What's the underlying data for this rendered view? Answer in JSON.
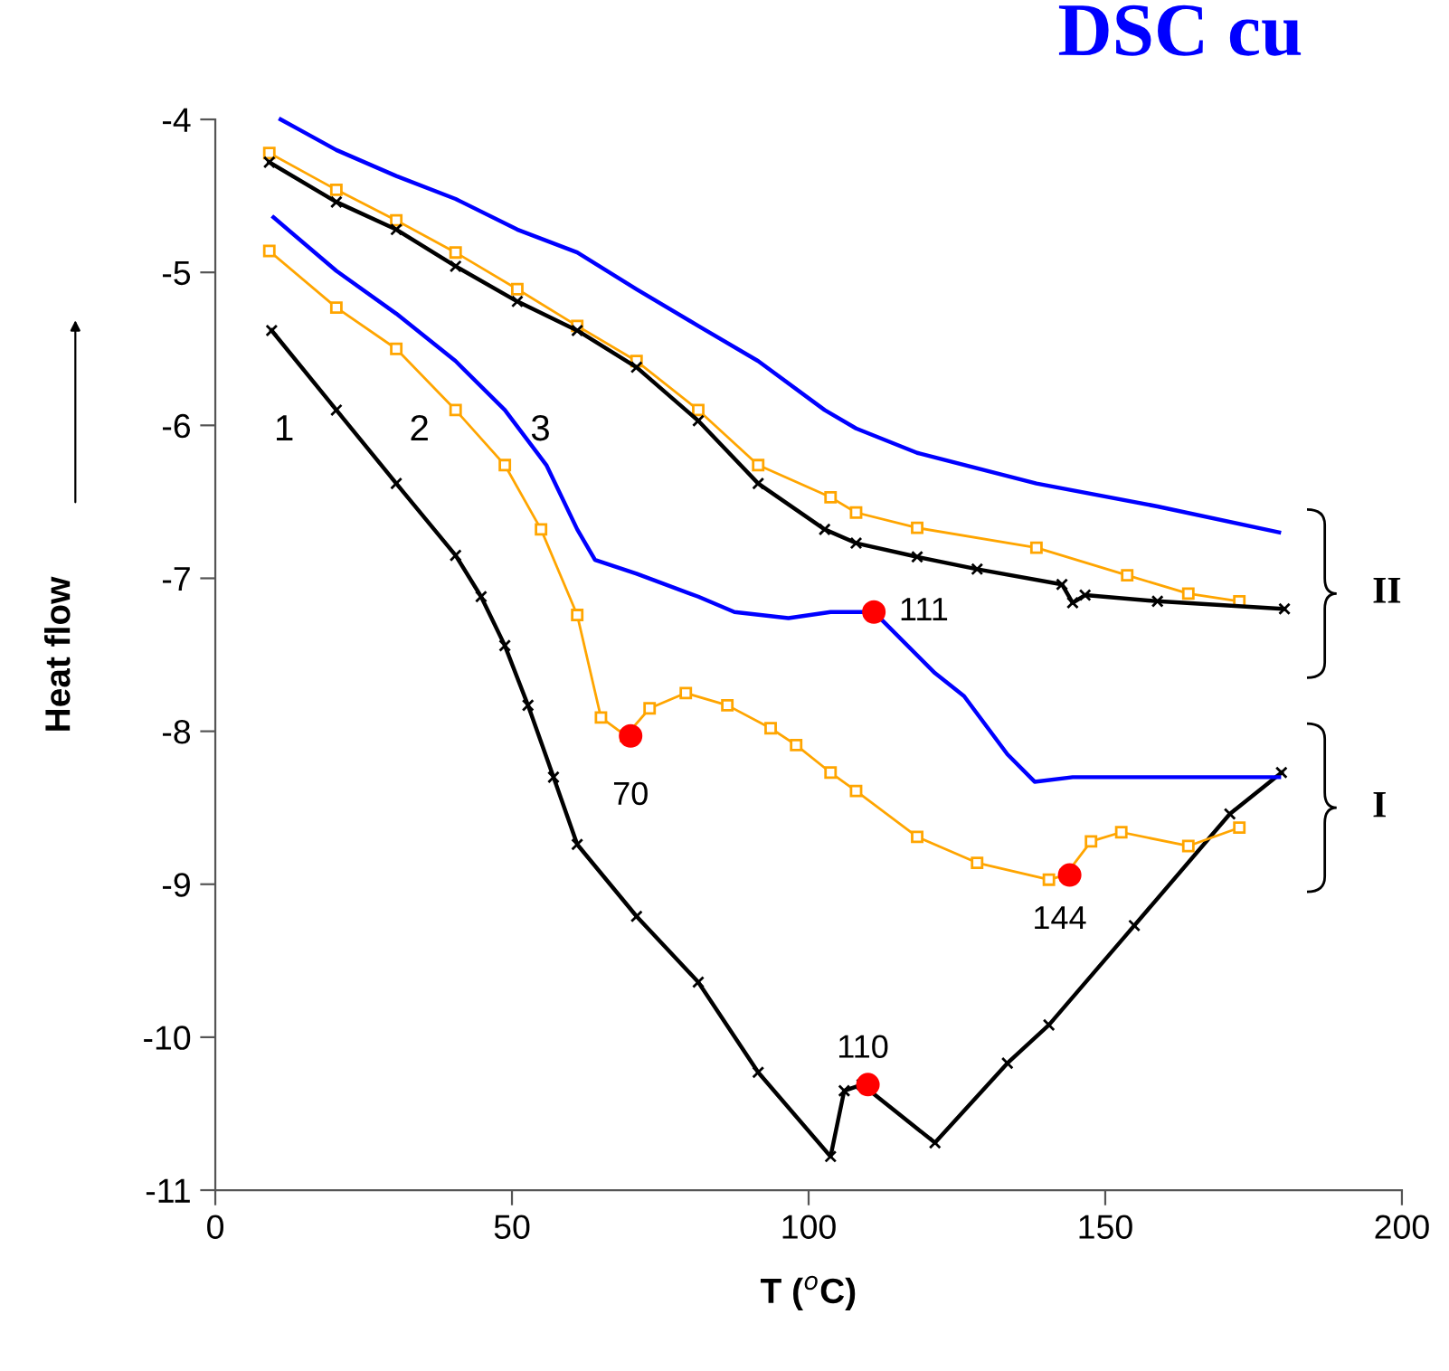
{
  "chart_data": {
    "type": "line",
    "title": "DSC cu",
    "xlabel": "T ($^{o}$C)",
    "ylabel": "Heat flow",
    "xlim": [
      0,
      200
    ],
    "xticks": [
      0,
      50,
      100,
      150,
      200
    ],
    "ylim": [
      -11,
      -4
    ],
    "yticks": [
      -11,
      -10,
      -9,
      -8,
      -7,
      -6,
      -5,
      -4
    ],
    "grid": false,
    "legend": false,
    "series": [
      {
        "color": "#000000",
        "marker": "cross",
        "x": [
          9.5,
          20.4,
          30.5,
          40.5,
          44.8,
          48.8,
          52.7,
          57,
          61,
          71,
          81.4,
          91.5,
          103.7,
          106,
          109,
          121.3,
          133.5,
          140.5,
          154.9,
          171,
          179.7
        ],
        "values": [
          -5.38,
          -5.9,
          -6.38,
          -6.85,
          -7.12,
          -7.44,
          -7.83,
          -8.3,
          -8.74,
          -9.21,
          -9.64,
          -10.23,
          -10.78,
          -10.35,
          -10.31,
          -10.69,
          -10.17,
          -9.92,
          -9.27,
          -8.54,
          -8.27
        ]
      },
      {
        "color": "#ffa500",
        "marker": "square",
        "x": [
          9.1,
          20.4,
          30.5,
          40.5,
          48.8,
          54.9,
          61,
          65,
          69.2,
          73.2,
          79.3,
          86.3,
          93.6,
          97.9,
          103.7,
          108,
          118.3,
          128.4,
          140.5,
          143.3,
          147.6,
          152.7,
          164,
          172.6
        ],
        "values": [
          -4.86,
          -5.23,
          -5.5,
          -5.9,
          -6.26,
          -6.68,
          -7.24,
          -7.91,
          -8.03,
          -7.85,
          -7.75,
          -7.83,
          -7.98,
          -8.09,
          -8.27,
          -8.39,
          -8.69,
          -8.86,
          -8.97,
          -8.94,
          -8.72,
          -8.66,
          -8.75,
          -8.63
        ]
      },
      {
        "color": "#0000ff",
        "marker": "none",
        "x": [
          9.8,
          20.4,
          30.5,
          40.5,
          48.8,
          55.8,
          61,
          64,
          71,
          81.4,
          87.5,
          96.6,
          103.7,
          111,
          121.3,
          126.2,
          133.5,
          138.1,
          144.5,
          179.3
        ],
        "values": [
          -4.64,
          -4.99,
          -5.27,
          -5.58,
          -5.9,
          -6.26,
          -6.68,
          -6.88,
          -6.97,
          -7.12,
          -7.22,
          -7.26,
          -7.22,
          -7.22,
          -7.62,
          -7.77,
          -8.15,
          -8.33,
          -8.3,
          -8.3
        ]
      },
      {
        "color": "#0000ff",
        "marker": "none",
        "x": [
          11,
          14.3,
          20.4,
          30.5,
          40.5,
          50.9,
          61,
          71,
          81.4,
          91.5,
          102.7,
          108,
          118.3,
          138.4,
          158.8,
          179.3
        ],
        "values": [
          -4.0,
          -4.07,
          -4.2,
          -4.37,
          -4.52,
          -4.72,
          -4.87,
          -5.11,
          -5.35,
          -5.58,
          -5.9,
          -6.02,
          -6.18,
          -6.38,
          -6.53,
          -6.7
        ]
      },
      {
        "color": "#ffa500",
        "marker": "square",
        "x": [
          9.1,
          20.4,
          30.5,
          40.5,
          50.9,
          61,
          71,
          81.4,
          91.5,
          103.7,
          108,
          118.3,
          138.4,
          153.7,
          164,
          172.6
        ],
        "values": [
          -4.22,
          -4.46,
          -4.66,
          -4.87,
          -5.11,
          -5.35,
          -5.58,
          -5.9,
          -6.26,
          -6.47,
          -6.57,
          -6.67,
          -6.8,
          -6.98,
          -7.1,
          -7.15
        ]
      },
      {
        "color": "#000000",
        "marker": "cross",
        "x": [
          9.1,
          20.4,
          30.5,
          40.5,
          50.9,
          61,
          71,
          81.4,
          91.5,
          102.7,
          108,
          118.3,
          128.4,
          142.7,
          144.5,
          146.6,
          158.8,
          180.2
        ],
        "values": [
          -4.28,
          -4.54,
          -4.72,
          -4.96,
          -5.19,
          -5.38,
          -5.62,
          -5.97,
          -6.38,
          -6.68,
          -6.77,
          -6.86,
          -6.94,
          -7.04,
          -7.16,
          -7.11,
          -7.15,
          -7.2
        ]
      },
      {
        "type": "scatter",
        "color": "#ff0000",
        "marker": "circle",
        "x": [
          70,
          111,
          144,
          110
        ],
        "values": [
          -8.03,
          -7.22,
          -8.94,
          -10.31
        ]
      }
    ],
    "annotations": [
      {
        "text": "70",
        "x": 70,
        "y": -8.03
      },
      {
        "text": "111",
        "x": 111,
        "y": -7.22
      },
      {
        "text": "144",
        "x": 144,
        "y": -8.94
      },
      {
        "text": "110",
        "x": 110,
        "y": -10.31
      },
      "1",
      "2",
      "3",
      "II",
      "I"
    ]
  }
}
